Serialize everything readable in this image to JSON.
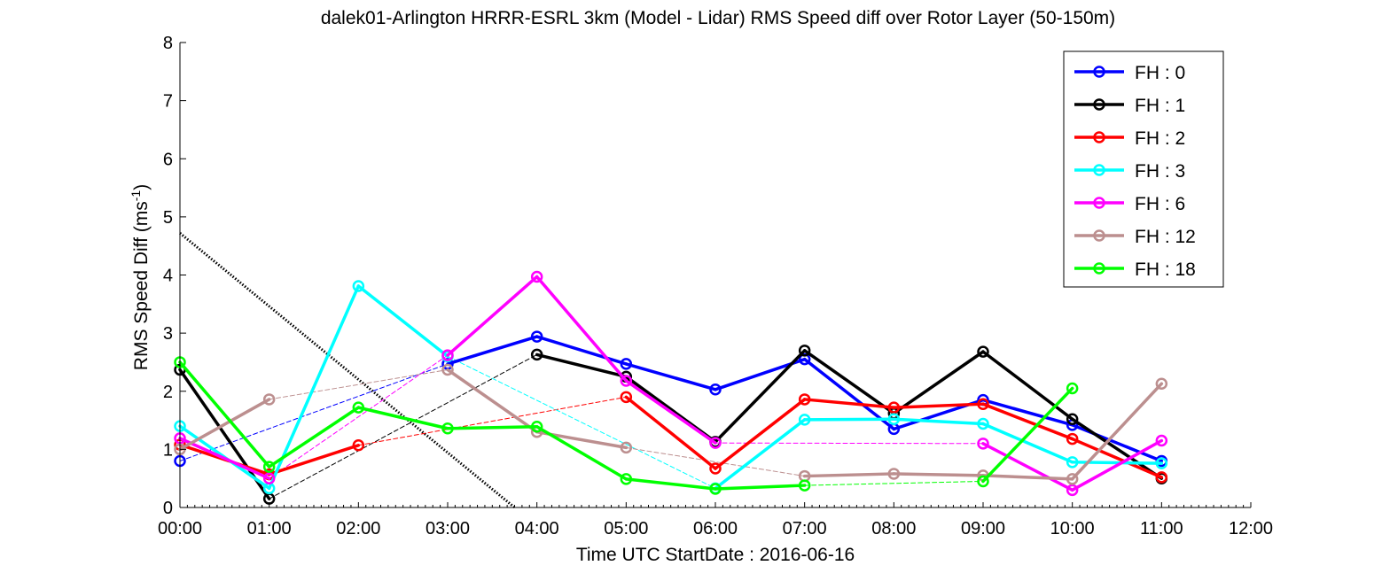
{
  "chart_data": {
    "type": "line",
    "title": "dalek01-Arlington HRRR-ESRL 3km (Model - Lidar) RMS Speed diff over Rotor Layer (50-150m)",
    "xlabel": "Time UTC    StartDate : 2016-06-16",
    "ylabel": "RMS Speed Diff (ms",
    "ylabel_sup": "-1",
    "ylabel_end": ")",
    "xlim": [
      0,
      12
    ],
    "ylim": [
      0,
      8
    ],
    "x_tick_labels": [
      "00:00",
      "01:00",
      "02:00",
      "03:00",
      "04:00",
      "05:00",
      "06:00",
      "07:00",
      "08:00",
      "09:00",
      "10:00",
      "11:00",
      "12:00"
    ],
    "y_tick_labels": [
      "0",
      "1",
      "2",
      "3",
      "4",
      "5",
      "6",
      "7",
      "8"
    ],
    "grid": false,
    "legend_position": "top-right",
    "series": [
      {
        "name": "FH : 0",
        "color": "#0000ff",
        "points": [
          [
            0,
            0.8
          ],
          [
            3,
            2.47
          ],
          [
            4,
            2.94
          ],
          [
            5,
            2.47
          ],
          [
            6,
            2.03
          ],
          [
            7,
            2.55
          ],
          [
            8,
            1.35
          ],
          [
            9,
            1.85
          ],
          [
            10,
            1.42
          ],
          [
            11,
            0.8
          ]
        ],
        "segments": [
          "thin",
          "solid",
          "solid",
          "solid",
          "solid",
          "solid",
          "solid",
          "solid",
          "solid"
        ]
      },
      {
        "name": "FH : 1",
        "color": "#000000",
        "points": [
          [
            0,
            2.37
          ],
          [
            1,
            0.15
          ],
          [
            4,
            2.63
          ],
          [
            5,
            2.25
          ],
          [
            6,
            1.13
          ],
          [
            7,
            2.7
          ],
          [
            8,
            1.62
          ],
          [
            9,
            2.68
          ],
          [
            10,
            1.52
          ],
          [
            11,
            0.5
          ]
        ],
        "segments": [
          "solid",
          "thin",
          "solid",
          "solid",
          "solid",
          "solid",
          "solid",
          "solid",
          "solid"
        ]
      },
      {
        "name": "FH : 2",
        "color": "#ff0000",
        "points": [
          [
            0,
            1.08
          ],
          [
            1,
            0.57
          ],
          [
            2,
            1.07
          ],
          [
            5,
            1.9
          ],
          [
            6,
            0.67
          ],
          [
            7,
            1.86
          ],
          [
            8,
            1.72
          ],
          [
            9,
            1.78
          ],
          [
            10,
            1.18
          ],
          [
            11,
            0.52
          ]
        ],
        "segments": [
          "solid",
          "solid",
          "thin",
          "solid",
          "solid",
          "solid",
          "solid",
          "solid",
          "solid"
        ]
      },
      {
        "name": "FH : 3",
        "color": "#00ffff",
        "points": [
          [
            0,
            1.4
          ],
          [
            1,
            0.33
          ],
          [
            2,
            3.81
          ],
          [
            3,
            2.6
          ],
          [
            6,
            0.33
          ],
          [
            7,
            1.51
          ],
          [
            8,
            1.52
          ],
          [
            9,
            1.44
          ],
          [
            10,
            0.78
          ],
          [
            11,
            0.76
          ]
        ],
        "segments": [
          "solid",
          "solid",
          "solid",
          "thin",
          "solid",
          "solid",
          "solid",
          "solid",
          "solid"
        ]
      },
      {
        "name": "FH : 6",
        "color": "#ff00ff",
        "points": [
          [
            0,
            1.19
          ],
          [
            1,
            0.5
          ],
          [
            3,
            2.62
          ],
          [
            4,
            3.97
          ],
          [
            5,
            2.18
          ],
          [
            6,
            1.11
          ],
          [
            9,
            1.1
          ],
          [
            10,
            0.3
          ],
          [
            11,
            1.15
          ]
        ],
        "segments": [
          "solid",
          "thin",
          "solid",
          "solid",
          "solid",
          "thin",
          "solid",
          "solid"
        ]
      },
      {
        "name": "FH : 12",
        "color": "#bc8f8f",
        "points": [
          [
            0,
            1.0
          ],
          [
            1,
            1.86
          ],
          [
            3,
            2.37
          ],
          [
            4,
            1.3
          ],
          [
            5,
            1.03
          ],
          [
            7,
            0.54
          ],
          [
            8,
            0.58
          ],
          [
            9,
            0.55
          ],
          [
            10,
            0.49
          ],
          [
            11,
            2.13
          ]
        ],
        "segments": [
          "solid",
          "thin",
          "solid",
          "solid",
          "thin",
          "solid",
          "solid",
          "solid",
          "solid"
        ]
      },
      {
        "name": "FH : 18",
        "color": "#00ff00",
        "points": [
          [
            0,
            2.5
          ],
          [
            1,
            0.7
          ],
          [
            2,
            1.72
          ],
          [
            3,
            1.36
          ],
          [
            4,
            1.39
          ],
          [
            5,
            0.49
          ],
          [
            6,
            0.32
          ],
          [
            7,
            0.38
          ],
          [
            9,
            0.45
          ],
          [
            10,
            2.05
          ]
        ],
        "segments": [
          "solid",
          "solid",
          "solid",
          "solid",
          "solid",
          "solid",
          "solid",
          "thin",
          "solid"
        ]
      }
    ],
    "reference_line": {
      "color": "#000000",
      "style": "dotted",
      "points": [
        [
          0,
          4.72
        ],
        [
          3.75,
          0.0
        ]
      ]
    }
  }
}
